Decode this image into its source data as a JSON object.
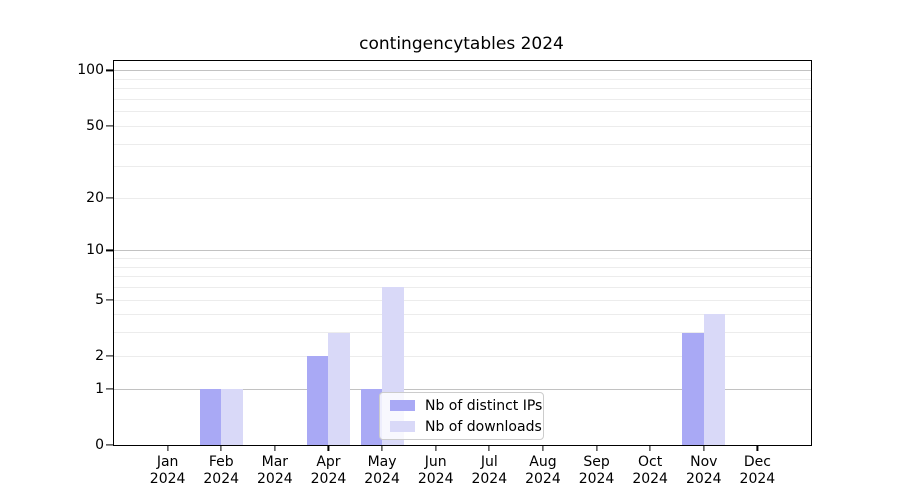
{
  "title": "contingencytables 2024",
  "chart_data": {
    "type": "bar",
    "title": "contingencytables 2024",
    "categories": [
      "Jan",
      "Feb",
      "Mar",
      "Apr",
      "May",
      "Jun",
      "Jul",
      "Aug",
      "Sep",
      "Oct",
      "Nov",
      "Dec"
    ],
    "category_year": "2024",
    "series": [
      {
        "name": "Nb of distinct IPs",
        "color": "#a9a9f5",
        "values": [
          0,
          1,
          0,
          2,
          1,
          0,
          0,
          0,
          0,
          0,
          3,
          0
        ]
      },
      {
        "name": "Nb of downloads",
        "color": "#d9d9f8",
        "values": [
          0,
          1,
          0,
          3,
          6,
          0,
          0,
          0,
          0,
          0,
          4,
          0
        ]
      }
    ],
    "yscale": "log1p",
    "ylim": [
      0,
      112.5
    ],
    "yticks": [
      0,
      1,
      2,
      5,
      10,
      20,
      50,
      100
    ],
    "major_gridlines": [
      1,
      10,
      100
    ],
    "minor_gridlines": [
      2,
      3,
      4,
      5,
      6,
      7,
      8,
      9,
      20,
      30,
      40,
      50,
      60,
      70,
      80,
      90
    ],
    "grid": true,
    "legend_position": "lower center-right inside plot"
  },
  "legend": {
    "items": [
      {
        "label": "Nb of distinct IPs",
        "color": "#a9a9f5"
      },
      {
        "label": "Nb of downloads",
        "color": "#d9d9f8"
      }
    ]
  },
  "colors": {
    "background": "#ffffff",
    "axis": "#000000",
    "text": "#000000",
    "major_grid": "#c2c2c2",
    "minor_grid": "#ececec",
    "legend_border": "#cccccc",
    "bar_distinct_ips": "#a9a9f5",
    "bar_downloads": "#d9d9f8"
  }
}
